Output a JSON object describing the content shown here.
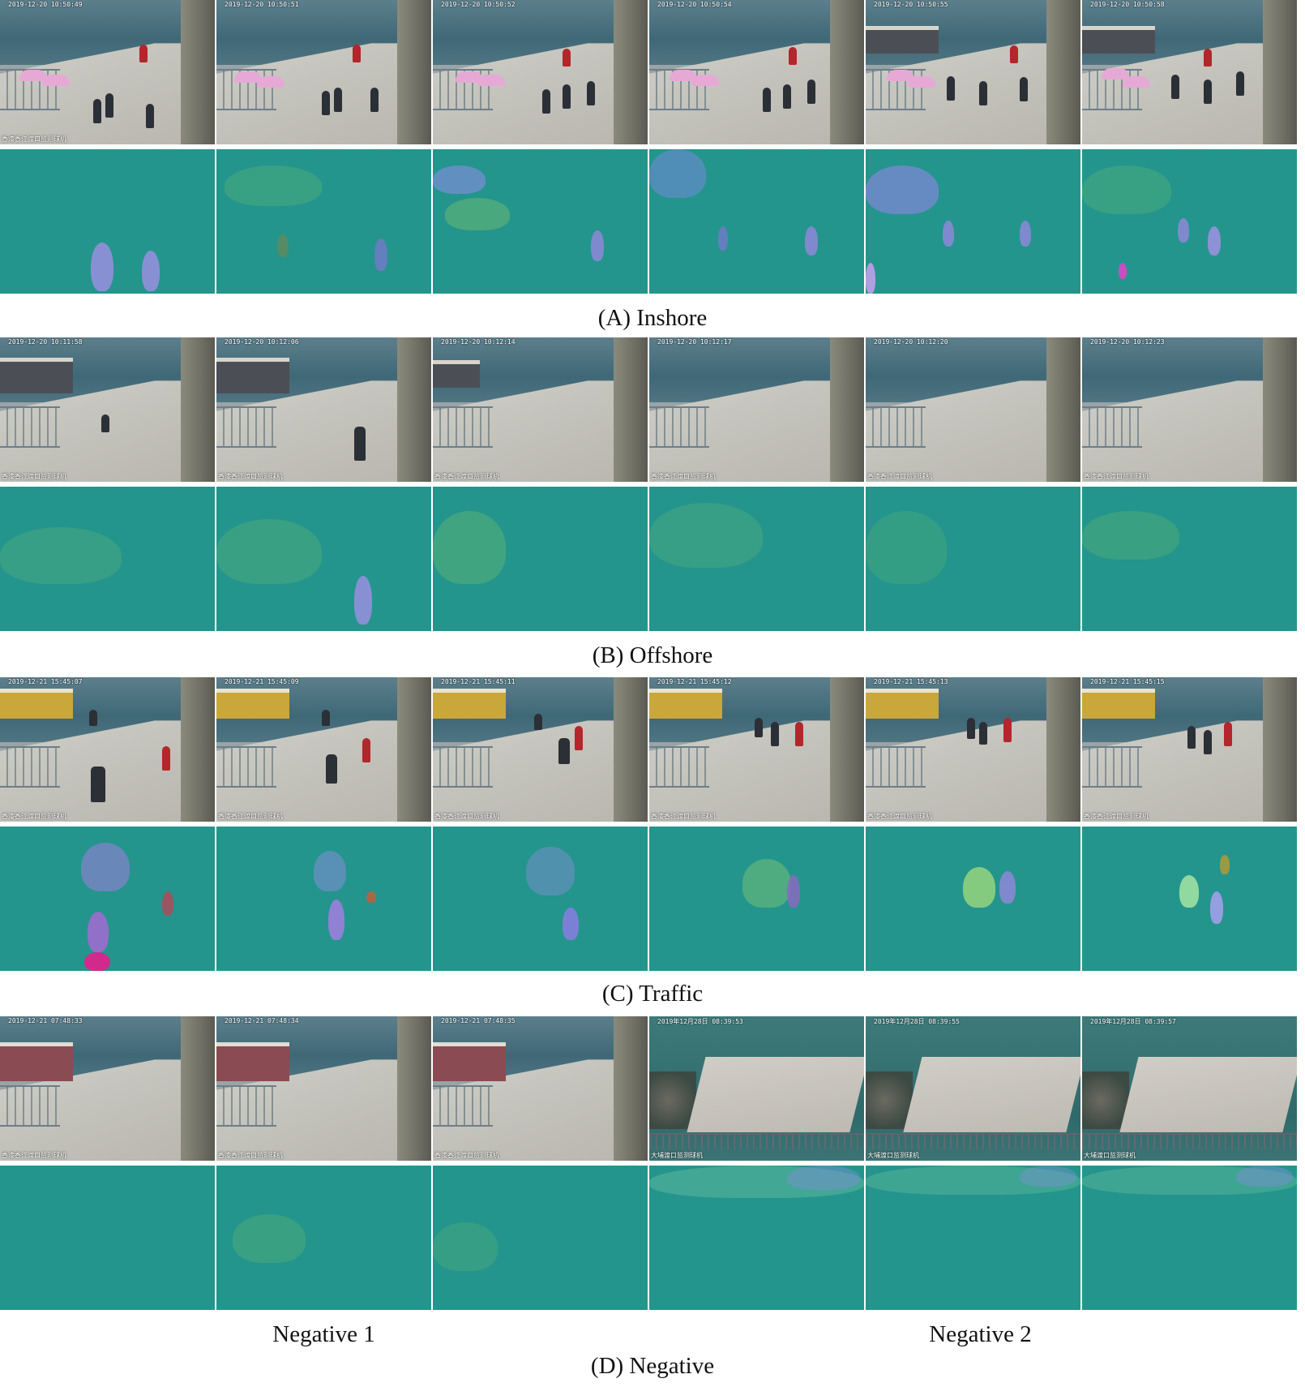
{
  "panels": [
    {
      "caption": "(A) Inshore",
      "timestamps": [
        "2019-12-20 10:50:49",
        "2019-12-20 10:50:51",
        "2019-12-20 10:50:52",
        "2019-12-20 10:50:54",
        "2019-12-20 10:50:55",
        "2019-12-20 10:50:58"
      ],
      "location_text": "香漆香江渡口监测球机"
    },
    {
      "caption": "(B) Offshore",
      "timestamps": [
        "2019-12-20 10:11:58",
        "2019-12-20 10:12:06",
        "2019-12-20 10:12:14",
        "2019-12-20 10:12:17",
        "2019-12-20 10:12:20",
        "2019-12-20 10:12:23"
      ],
      "location_text": "香漆香江渡口监测球机"
    },
    {
      "caption": "(C) Traffic",
      "timestamps": [
        "2019-12-21 15:45:07",
        "2019-12-21 15:45:09",
        "2019-12-21 15:45:11",
        "2019-12-21 15:45:12",
        "2019-12-21 15:45:13",
        "2019-12-21 15:45:15"
      ],
      "location_text": "香漆香江渡口监测球机"
    },
    {
      "caption": "(D) Negative",
      "timestamps": [
        "2019-12-21 07:48:33",
        "2019-12-21 07:48:34",
        "2019-12-21 07:48:35",
        "2019年12月28日 08:39:53",
        "2019年12月28日 08:39:55",
        "2019年12月28日 08:39:57"
      ],
      "location_text": "香漆香江渡口监测球机",
      "location_text_2": "大埔渡口监测球机",
      "subcaptions": [
        "Negative 1",
        "Negative 2"
      ]
    }
  ],
  "colors": {
    "flow_background": "#24958c",
    "caption_text": "#111111"
  }
}
